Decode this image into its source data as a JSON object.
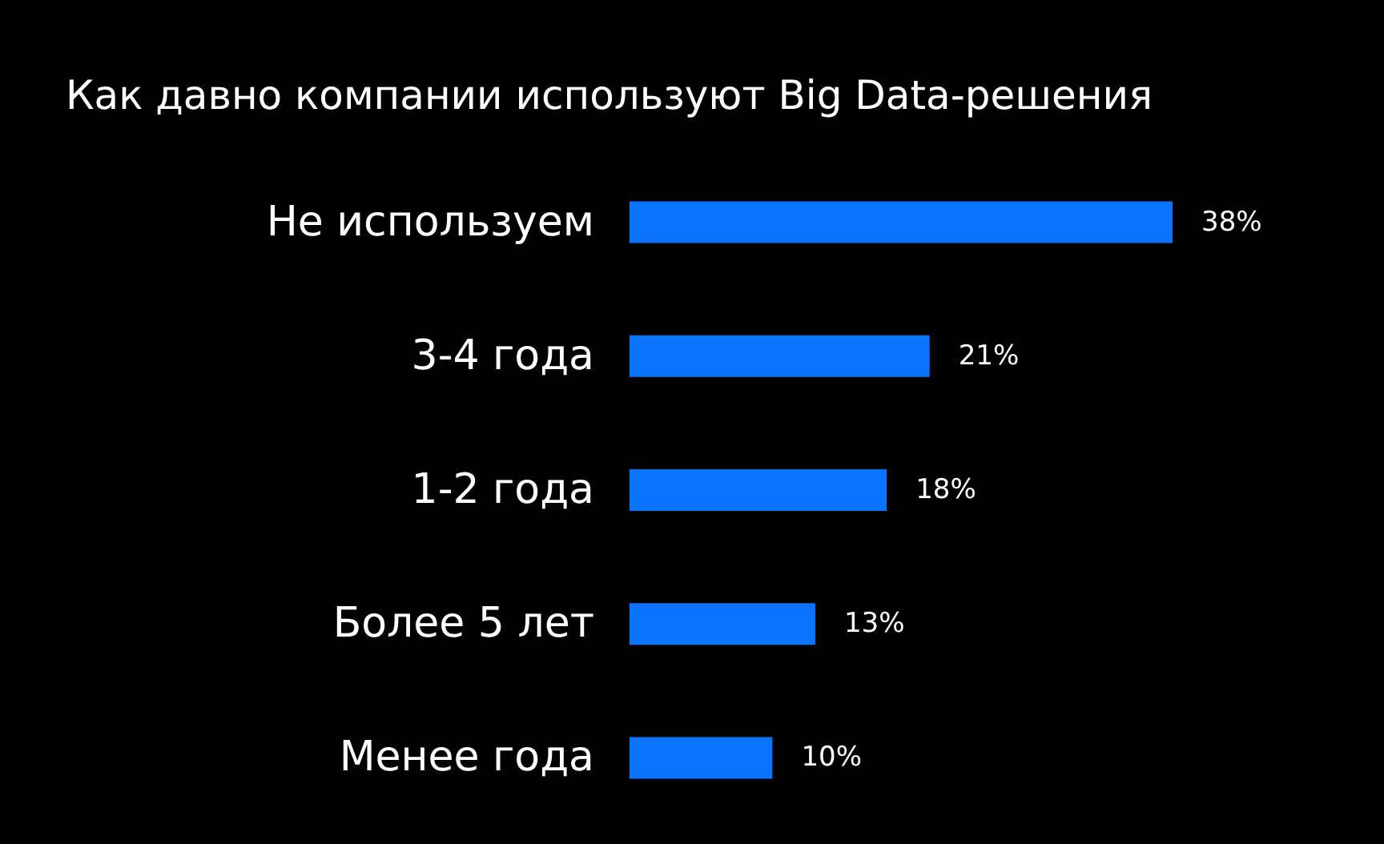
{
  "chart_data": {
    "type": "bar",
    "orientation": "horizontal",
    "title": "Как давно компании используют Big Data-решения",
    "categories": [
      "Не используем",
      "3-4 года",
      "1-2 года",
      "Более 5 лет",
      "Менее года"
    ],
    "values": [
      38,
      21,
      18,
      13,
      10
    ],
    "value_labels": [
      "38%",
      "21%",
      "18%",
      "13%",
      "10%"
    ],
    "color": "#0a74ff",
    "tick_labels": "y"
  }
}
